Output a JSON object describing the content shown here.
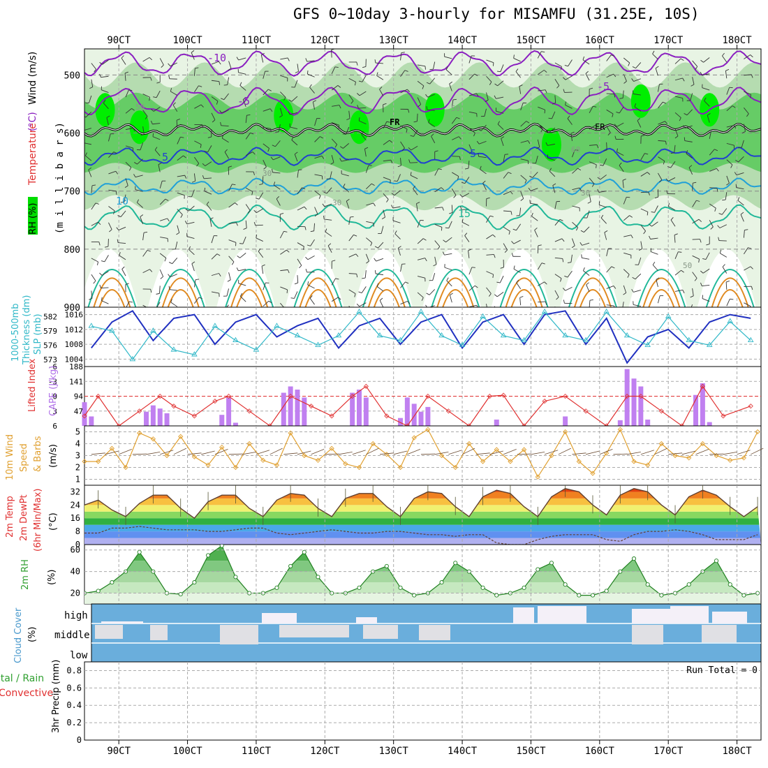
{
  "title": "GFS 0~10day 3-hourly for MISAMFU (31.25E, 10S)",
  "time_ticks": [
    "90CT",
    "100CT",
    "110CT",
    "120CT",
    "130CT",
    "140CT",
    "150CT",
    "160CT",
    "170CT",
    "180CT"
  ],
  "colors": {
    "rh_light": "#e8f4e4",
    "rh_mid": "#b5dcb0",
    "rh_gray": "#9aaa9a",
    "rh_green": "#66cc66",
    "rh_bright": "#00ee00",
    "t_purple": "#8a1fc0",
    "t_blue": "#2040d0",
    "t_cyan": "#20a0d8",
    "t_teal": "#20b898",
    "t_orange": "#e08a20",
    "slp": "#2030c0",
    "thickness": "#30b8c8",
    "cape": "#c080f0",
    "lifted": "#e03030",
    "wind": "#e0a030",
    "cloud": "#6aaedc",
    "precip": "#30a030"
  },
  "panels": {
    "upper": {
      "left_label_1": "RH (%)",
      "left_label_2": "Temperature",
      "left_label_3": "(°C)",
      "left_label_4": "Wind (m/s)",
      "unit_label": "(m i l l i b a r s)",
      "y_ticks": [
        "500",
        "600",
        "700",
        "800",
        "900"
      ],
      "freeze_labels": [
        "FR",
        "FR"
      ],
      "contour_labels": [
        "-10",
        "-5",
        "-5",
        "5",
        "5",
        "10",
        "15"
      ],
      "rh_labels": [
        "50",
        "50",
        "30",
        "60",
        "30",
        "30",
        "50"
      ]
    },
    "slp": {
      "label_left": "1000-500mb",
      "label_left_2": "Thickness (dm)",
      "label_right": "SLP (mb)",
      "left_ticks": [
        "582",
        "579",
        "576",
        "573"
      ],
      "right_ticks": [
        "1016",
        "1012",
        "1008",
        "1004"
      ]
    },
    "cape": {
      "label_left": "Lifted Index",
      "label_right": "CAPE (J/kg)",
      "left_ticks": [
        "-6",
        "-3",
        "0",
        "3",
        "6"
      ],
      "right_ticks": [
        "188",
        "141",
        "94",
        "47"
      ]
    },
    "wind": {
      "label_1": "10m Wind",
      "label_2": "Speed",
      "label_3": "& Barbs",
      "unit": "(m/s)",
      "y_ticks": [
        "5",
        "4",
        "3",
        "2",
        "1"
      ]
    },
    "temp": {
      "label_1": "2m Temp",
      "label_2": "2m DewPt",
      "label_3": "(6hr Min/Max)",
      "unit": "(°C)",
      "y_ticks": [
        "32",
        "24",
        "16",
        "8",
        "0"
      ]
    },
    "rh2m": {
      "label": "2m RH",
      "unit": "(%)",
      "y_ticks": [
        "60",
        "40",
        "20"
      ]
    },
    "cloud": {
      "label": "Cloud Cover",
      "unit": "(%)",
      "levels": [
        "high",
        "middle",
        "low"
      ]
    },
    "precip": {
      "label_1": "Total / Rain",
      "label_2": "Convective",
      "unit": "3hr Precip (mm)",
      "run_total": "Run Total = 0",
      "y_ticks": [
        "0.8",
        "0.6",
        "0.4",
        "0.2",
        "0"
      ]
    }
  },
  "chart_data": [
    {
      "type": "line",
      "title": "",
      "xlabel": "",
      "ylabel": "SLP (mb)",
      "x": [
        86,
        89,
        92,
        95,
        98,
        101,
        104,
        107,
        110,
        113,
        116,
        119,
        122,
        125,
        128,
        131,
        134,
        137,
        140,
        143,
        146,
        149,
        152,
        155,
        158,
        161,
        164,
        167,
        170,
        173,
        176,
        179,
        182
      ],
      "series": [
        {
          "name": "SLP (mb)",
          "values": [
            1007,
            1014,
            1017,
            1009,
            1015,
            1016,
            1008,
            1014,
            1016,
            1010,
            1013,
            1015,
            1007,
            1013,
            1015,
            1008,
            1014,
            1016,
            1007,
            1014,
            1016,
            1008,
            1016,
            1017,
            1008,
            1015,
            1003,
            1010,
            1012,
            1007,
            1014,
            1016,
            1015
          ]
        },
        {
          "name": "1000-500mb Thickness (dm)",
          "values": [
            580,
            579,
            573,
            579,
            575,
            574,
            580,
            577,
            575,
            580,
            578,
            576,
            578,
            583,
            578,
            577,
            583,
            578,
            576,
            582,
            578,
            577,
            583,
            578,
            577,
            583,
            578,
            576,
            582,
            577,
            576,
            581,
            577
          ]
        }
      ]
    },
    {
      "type": "bar",
      "title": "",
      "xlabel": "",
      "ylabel": "CAPE (J/kg)",
      "ylim": [
        0,
        188
      ],
      "x": [
        85,
        86,
        94,
        95,
        96,
        97,
        105,
        106,
        107,
        114,
        115,
        116,
        117,
        124,
        125,
        126,
        131,
        132,
        133,
        134,
        135,
        145,
        155,
        163,
        164,
        165,
        166,
        167,
        174,
        175,
        176
      ],
      "series": [
        {
          "name": "CAPE (J/kg)",
          "values": [
            75,
            30,
            45,
            65,
            55,
            40,
            35,
            90,
            10,
            105,
            125,
            115,
            90,
            105,
            115,
            90,
            25,
            90,
            70,
            45,
            60,
            20,
            30,
            18,
            180,
            150,
            125,
            20,
            98,
            135,
            12
          ]
        },
        {
          "name": "Lifted Index",
          "x": [
            85,
            87,
            90,
            93,
            96,
            98,
            101,
            104,
            106,
            109,
            112,
            115,
            118,
            121,
            124,
            126,
            129,
            132,
            135,
            138,
            141,
            144,
            146,
            149,
            152,
            155,
            158,
            161,
            164,
            166,
            169,
            172,
            175,
            178,
            182
          ],
          "values": [
            4,
            0,
            6,
            3,
            0,
            2,
            4,
            1,
            0,
            3,
            6,
            0,
            2,
            4,
            0,
            -2,
            4,
            6,
            0,
            3,
            6,
            0,
            -0.2,
            6,
            1,
            0,
            3,
            6,
            0,
            0,
            3,
            6,
            -2,
            4,
            2
          ]
        }
      ]
    },
    {
      "type": "line",
      "title": "",
      "xlabel": "",
      "ylabel": "Speed (m/s)",
      "ylim": [
        0.5,
        5.5
      ],
      "x": [
        85,
        87,
        89,
        91,
        93,
        95,
        97,
        99,
        101,
        103,
        105,
        107,
        109,
        111,
        113,
        115,
        117,
        119,
        121,
        123,
        125,
        127,
        129,
        131,
        133,
        135,
        137,
        139,
        141,
        143,
        145,
        147,
        149,
        151,
        153,
        155,
        157,
        159,
        161,
        163,
        165,
        167,
        169,
        171,
        173,
        175,
        177,
        179,
        181,
        183
      ],
      "series": [
        {
          "name": "10m Wind Speed",
          "values": [
            2.5,
            2.5,
            3.6,
            2.0,
            4.9,
            4.4,
            3.0,
            4.6,
            2.9,
            2.2,
            3.7,
            2.0,
            4.0,
            2.6,
            2.2,
            4.9,
            3.0,
            2.6,
            3.6,
            2.3,
            2.0,
            4.0,
            3.1,
            2.0,
            4.5,
            5.2,
            3.0,
            2.0,
            4.0,
            2.5,
            3.5,
            2.5,
            3.5,
            1.2,
            3.0,
            5.0,
            2.5,
            1.5,
            3.2,
            5.2,
            2.5,
            2.2,
            4.0,
            3.0,
            2.8,
            4.0,
            3.0,
            2.6,
            2.8,
            5.0
          ]
        }
      ]
    },
    {
      "type": "area",
      "title": "",
      "xlabel": "",
      "ylabel": "(°C)",
      "ylim": [
        0,
        36
      ],
      "x": [
        85,
        87,
        89,
        91,
        93,
        95,
        97,
        99,
        101,
        103,
        105,
        107,
        109,
        111,
        113,
        115,
        117,
        119,
        121,
        123,
        125,
        127,
        129,
        131,
        133,
        135,
        137,
        139,
        141,
        143,
        145,
        147,
        149,
        151,
        153,
        155,
        157,
        159,
        161,
        163,
        165,
        167,
        169,
        171,
        173,
        175,
        177,
        179,
        181,
        183
      ],
      "series": [
        {
          "name": "2m Temp",
          "values": [
            24,
            27,
            21,
            17,
            25,
            30,
            30,
            22,
            16,
            26,
            30,
            30,
            22,
            17,
            27,
            31,
            30,
            22,
            17,
            28,
            31,
            31,
            23,
            17,
            28,
            32,
            31,
            23,
            17,
            29,
            33,
            31,
            23,
            17,
            29,
            34,
            32,
            24,
            18,
            30,
            34,
            32,
            24,
            18,
            29,
            33,
            30,
            23,
            17,
            23
          ]
        },
        {
          "name": "2m DewPt",
          "values": [
            7,
            7,
            10,
            10,
            11,
            10,
            9,
            9,
            9,
            8,
            8,
            9,
            10,
            10,
            7,
            6,
            7,
            8,
            9,
            8,
            7,
            7,
            8,
            8,
            7,
            6,
            6,
            5,
            6,
            6,
            1,
            0,
            0,
            3,
            5,
            6,
            6,
            6,
            3,
            2,
            6,
            8,
            8,
            9,
            8,
            6,
            3,
            3,
            3,
            6
          ]
        }
      ]
    },
    {
      "type": "area",
      "title": "",
      "xlabel": "",
      "ylabel": "(%)",
      "ylim": [
        10,
        65
      ],
      "x": [
        85,
        87,
        89,
        91,
        93,
        95,
        97,
        99,
        101,
        103,
        105,
        107,
        109,
        111,
        113,
        115,
        117,
        119,
        121,
        123,
        125,
        127,
        129,
        131,
        133,
        135,
        137,
        139,
        141,
        143,
        145,
        147,
        149,
        151,
        153,
        155,
        157,
        159,
        161,
        163,
        165,
        167,
        169,
        171,
        173,
        175,
        177,
        179,
        181,
        183
      ],
      "series": [
        {
          "name": "2m RH",
          "values": [
            20,
            22,
            30,
            40,
            58,
            40,
            20,
            19,
            30,
            55,
            64,
            35,
            20,
            20,
            25,
            45,
            58,
            35,
            20,
            20,
            25,
            40,
            45,
            25,
            18,
            20,
            30,
            48,
            40,
            25,
            18,
            20,
            25,
            42,
            48,
            28,
            18,
            18,
            22,
            40,
            52,
            28,
            18,
            20,
            28,
            40,
            50,
            28,
            18,
            20
          ]
        }
      ]
    }
  ]
}
